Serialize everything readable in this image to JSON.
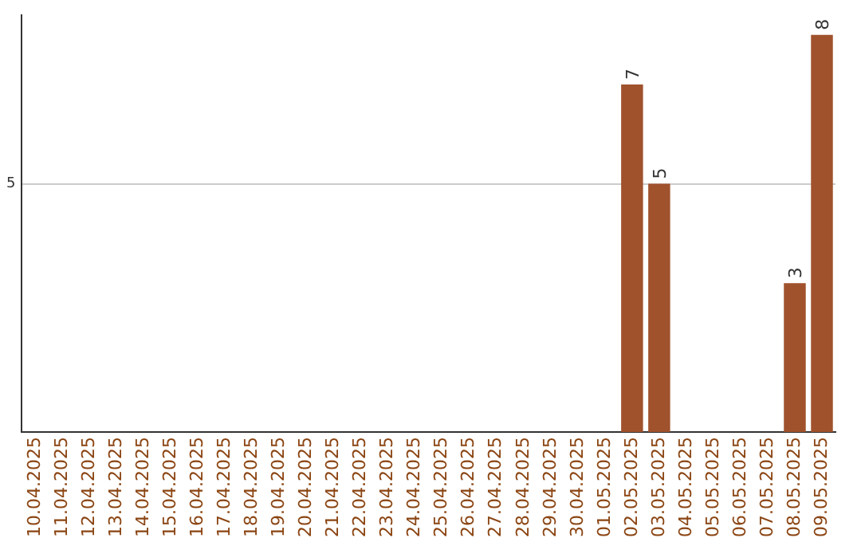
{
  "chart_data": {
    "type": "bar",
    "categories": [
      "10.04.2025",
      "11.04.2025",
      "12.04.2025",
      "13.04.2025",
      "14.04.2025",
      "15.04.2025",
      "16.04.2025",
      "17.04.2025",
      "18.04.2025",
      "19.04.2025",
      "20.04.2025",
      "21.04.2025",
      "22.04.2025",
      "23.04.2025",
      "24.04.2025",
      "25.04.2025",
      "26.04.2025",
      "27.04.2025",
      "28.04.2025",
      "29.04.2025",
      "30.04.2025",
      "01.05.2025",
      "02.05.2025",
      "03.05.2025",
      "04.05.2025",
      "05.05.2025",
      "06.05.2025",
      "07.05.2025",
      "08.05.2025",
      "09.05.2025"
    ],
    "values": [
      null,
      null,
      null,
      null,
      null,
      null,
      null,
      null,
      null,
      null,
      null,
      null,
      null,
      null,
      null,
      null,
      null,
      null,
      null,
      null,
      null,
      null,
      7,
      5,
      null,
      null,
      null,
      null,
      3,
      8
    ],
    "data_labels": true,
    "color": "#a0522d",
    "ylim": [
      0,
      8.4
    ],
    "yticks": [
      5
    ],
    "grid": "y"
  }
}
